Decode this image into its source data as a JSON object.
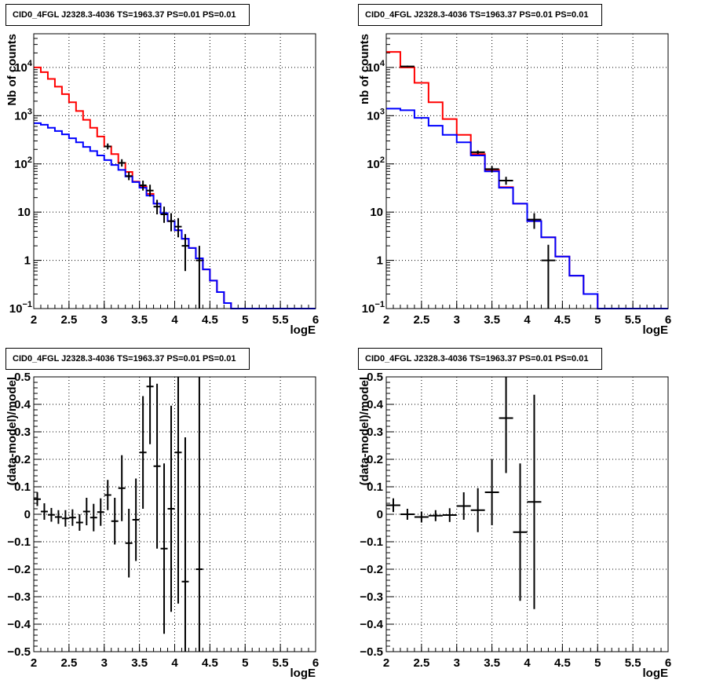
{
  "chart_data": [
    {
      "type": "line",
      "title": "CID0_4FGL J2328.3-4036 TS=1963.37 PS=0.01 PS=0.01",
      "xlabel": "logE",
      "ylabel": "Nb of counts",
      "xlim": [
        2,
        6
      ],
      "ylim": [
        0.1,
        50000
      ],
      "yscale": "log",
      "grid": true,
      "xticks": [
        "2",
        "2.5",
        "3",
        "3.5",
        "4",
        "4.5",
        "5",
        "5.5",
        "6"
      ],
      "yticks": [
        {
          "v": 0.1,
          "label": "10",
          "exp": "−1"
        },
        {
          "v": 1,
          "label": "1",
          "exp": ""
        },
        {
          "v": 10,
          "label": "10",
          "exp": ""
        },
        {
          "v": 100,
          "label": "10",
          "exp": "2"
        },
        {
          "v": 1000,
          "label": "10",
          "exp": "3"
        },
        {
          "v": 10000,
          "label": "10",
          "exp": "4"
        }
      ],
      "bin_edges": [
        2.0,
        2.1,
        2.2,
        2.3,
        2.4,
        2.5,
        2.6,
        2.7,
        2.8,
        2.9,
        3.0,
        3.1,
        3.2,
        3.3,
        3.4,
        3.5,
        3.6,
        3.7,
        3.8,
        3.9,
        4.0,
        4.1,
        4.2,
        4.3,
        4.4,
        4.5,
        4.6,
        4.7,
        4.8,
        4.9,
        5.0,
        5.1,
        5.2,
        5.3,
        5.4,
        5.5,
        5.6,
        5.7,
        5.8,
        5.9,
        6.0
      ],
      "series": [
        {
          "color": "#ff0000",
          "values": [
            10000,
            8000,
            5800,
            4000,
            2800,
            1900,
            1250,
            820,
            560,
            370,
            230,
            160,
            105,
            68,
            43,
            34,
            24,
            15,
            9.5,
            6.5,
            4.2,
            2.8,
            1.8,
            1.1,
            0.65,
            0.38,
            0.22,
            0.13,
            0.1,
            0.1,
            0.1,
            0.1,
            0.1,
            0.1,
            0.1,
            0.1,
            0.1,
            0.1,
            0.1,
            0.1
          ]
        },
        {
          "color": "#0000ff",
          "values": [
            700,
            650,
            560,
            480,
            410,
            340,
            280,
            225,
            185,
            150,
            120,
            95,
            75,
            55,
            42,
            32,
            22,
            15,
            9.5,
            6.5,
            4.2,
            2.8,
            1.8,
            1.1,
            0.65,
            0.38,
            0.22,
            0.13,
            0.1,
            0.1,
            0.1,
            0.1,
            0.1,
            0.1,
            0.1,
            0.1,
            0.1,
            0.1,
            0.1,
            0.1
          ]
        }
      ],
      "data_points": [
        {
          "x": 3.05,
          "y": 230,
          "ylo": 200,
          "yhi": 265
        },
        {
          "x": 3.25,
          "y": 105,
          "ylo": 88,
          "yhi": 125
        },
        {
          "x": 3.35,
          "y": 56,
          "ylo": 46,
          "yhi": 68
        },
        {
          "x": 3.55,
          "y": 36,
          "ylo": 28,
          "yhi": 45
        },
        {
          "x": 3.65,
          "y": 28,
          "ylo": 21,
          "yhi": 37
        },
        {
          "x": 3.75,
          "y": 13,
          "ylo": 9,
          "yhi": 18
        },
        {
          "x": 3.85,
          "y": 9,
          "ylo": 6,
          "yhi": 13
        },
        {
          "x": 3.95,
          "y": 6.5,
          "ylo": 4,
          "yhi": 9.5
        },
        {
          "x": 4.05,
          "y": 5,
          "ylo": 3,
          "yhi": 7.5
        },
        {
          "x": 4.15,
          "y": 2,
          "ylo": 0.6,
          "yhi": 3.5
        },
        {
          "x": 4.35,
          "y": 1,
          "ylo": 0.1,
          "yhi": 2
        }
      ]
    },
    {
      "type": "line",
      "title": "CID0_4FGL J2328.3-4036 TS=1963.37 PS=0.01 PS=0.01",
      "xlabel": "logE",
      "ylabel": "nb of counts",
      "xlim": [
        2,
        6
      ],
      "ylim": [
        0.1,
        50000
      ],
      "yscale": "log",
      "grid": true,
      "xticks": [
        "2",
        "2.5",
        "3",
        "3.5",
        "4",
        "4.5",
        "5",
        "5.5",
        "6"
      ],
      "yticks": [
        {
          "v": 0.1,
          "label": "10",
          "exp": "−1"
        },
        {
          "v": 1,
          "label": "1",
          "exp": ""
        },
        {
          "v": 10,
          "label": "10",
          "exp": ""
        },
        {
          "v": 100,
          "label": "10",
          "exp": "2"
        },
        {
          "v": 1000,
          "label": "10",
          "exp": "3"
        },
        {
          "v": 10000,
          "label": "10",
          "exp": "4"
        }
      ],
      "bin_edges": [
        2.0,
        2.2,
        2.4,
        2.6,
        2.8,
        3.0,
        3.2,
        3.4,
        3.6,
        3.8,
        4.0,
        4.2,
        4.4,
        4.6,
        4.8,
        5.0,
        5.2,
        5.4,
        5.6,
        5.8,
        6.0
      ],
      "series": [
        {
          "color": "#ff0000",
          "values": [
            21000,
            10000,
            4800,
            1900,
            850,
            400,
            160,
            75,
            33,
            15,
            6.5,
            3,
            1.2,
            0.48,
            0.2,
            0.1,
            0.1,
            0.1,
            0.1,
            0.1
          ]
        },
        {
          "color": "#0000ff",
          "values": [
            1400,
            1300,
            900,
            620,
            400,
            280,
            150,
            70,
            32,
            15,
            6.5,
            3,
            1.2,
            0.48,
            0.2,
            0.1,
            0.1,
            0.1,
            0.1,
            0.1
          ]
        }
      ],
      "data_points": [
        {
          "x": 2.3,
          "y": 10500,
          "ylo": 10100,
          "yhi": 10900
        },
        {
          "x": 3.3,
          "y": 175,
          "ylo": 160,
          "yhi": 190
        },
        {
          "x": 3.5,
          "y": 78,
          "ylo": 67,
          "yhi": 90
        },
        {
          "x": 3.7,
          "y": 45,
          "ylo": 37,
          "yhi": 54
        },
        {
          "x": 4.1,
          "y": 7,
          "ylo": 4.5,
          "yhi": 9.5
        },
        {
          "x": 4.3,
          "y": 1,
          "ylo": 0.1,
          "yhi": 2.1
        }
      ]
    },
    {
      "type": "scatter",
      "title": "CID0_4FGL J2328.3-4036 TS=1963.37 PS=0.01 PS=0.01",
      "xlabel": "logE",
      "ylabel": "(data-model)/model",
      "xlim": [
        2,
        6
      ],
      "ylim": [
        -0.5,
        0.5
      ],
      "grid": true,
      "xticks": [
        "2",
        "2.5",
        "3",
        "3.5",
        "4",
        "4.5",
        "5",
        "5.5",
        "6"
      ],
      "yticks": [
        "−0.5",
        "−0.4",
        "−0.3",
        "−0.2",
        "−0.1",
        "0",
        "0.1",
        "0.2",
        "0.3",
        "0.4",
        "0.5"
      ],
      "ytick_values": [
        -0.5,
        -0.4,
        -0.3,
        -0.2,
        -0.1,
        0,
        0.1,
        0.2,
        0.3,
        0.4,
        0.5
      ],
      "bin_halfwidth": 0.05,
      "data_points": [
        {
          "x": 2.05,
          "y": 0.055,
          "err": 0.025
        },
        {
          "x": 2.15,
          "y": 0.01,
          "err": 0.03
        },
        {
          "x": 2.25,
          "y": -0.002,
          "err": 0.025
        },
        {
          "x": 2.35,
          "y": -0.01,
          "err": 0.025
        },
        {
          "x": 2.45,
          "y": -0.015,
          "err": 0.03
        },
        {
          "x": 2.55,
          "y": -0.012,
          "err": 0.03
        },
        {
          "x": 2.65,
          "y": -0.03,
          "err": 0.03
        },
        {
          "x": 2.75,
          "y": 0.01,
          "err": 0.05
        },
        {
          "x": 2.85,
          "y": -0.012,
          "err": 0.05
        },
        {
          "x": 2.95,
          "y": 0.008,
          "err": 0.05
        },
        {
          "x": 3.05,
          "y": 0.07,
          "err": 0.055
        },
        {
          "x": 3.15,
          "y": -0.025,
          "err": 0.085
        },
        {
          "x": 3.25,
          "y": 0.095,
          "err": 0.12
        },
        {
          "x": 3.35,
          "y": -0.105,
          "err": 0.125
        },
        {
          "x": 3.45,
          "y": -0.02,
          "err": 0.15
        },
        {
          "x": 3.55,
          "y": 0.225,
          "err": 0.205
        },
        {
          "x": 3.65,
          "y": 0.465,
          "err": 0.21
        },
        {
          "x": 3.75,
          "y": 0.175,
          "err": 0.3
        },
        {
          "x": 3.85,
          "y": -0.125,
          "err": 0.31
        },
        {
          "x": 3.95,
          "y": 0.02,
          "err": 0.375
        },
        {
          "x": 4.05,
          "y": 0.225,
          "err": 0.55
        },
        {
          "x": 4.15,
          "y": -0.245,
          "err": 0.525
        },
        {
          "x": 4.35,
          "y": -0.2,
          "err": 0.8
        }
      ]
    },
    {
      "type": "scatter",
      "title": "CID0_4FGL J2328.3-4036 TS=1963.37 PS=0.01 PS=0.01",
      "xlabel": "logE",
      "ylabel": "(data-model)/model",
      "xlim": [
        2,
        6
      ],
      "ylim": [
        -0.5,
        0.5
      ],
      "grid": true,
      "xticks": [
        "2",
        "2.5",
        "3",
        "3.5",
        "4",
        "4.5",
        "5",
        "5.5",
        "6"
      ],
      "yticks": [
        "−0.5",
        "−0.4",
        "−0.3",
        "−0.2",
        "−0.1",
        "0",
        "0.1",
        "0.2",
        "0.3",
        "0.4",
        "0.5"
      ],
      "ytick_values": [
        -0.5,
        -0.4,
        -0.3,
        -0.2,
        -0.1,
        0,
        0.1,
        0.2,
        0.3,
        0.4,
        0.5
      ],
      "bin_halfwidth": 0.1,
      "data_points": [
        {
          "x": 2.1,
          "y": 0.033,
          "err": 0.025
        },
        {
          "x": 2.3,
          "y": 0.0,
          "err": 0.02
        },
        {
          "x": 2.5,
          "y": -0.01,
          "err": 0.02
        },
        {
          "x": 2.7,
          "y": -0.005,
          "err": 0.02
        },
        {
          "x": 2.9,
          "y": -0.003,
          "err": 0.025
        },
        {
          "x": 3.1,
          "y": 0.03,
          "err": 0.05
        },
        {
          "x": 3.3,
          "y": 0.015,
          "err": 0.08
        },
        {
          "x": 3.5,
          "y": 0.08,
          "err": 0.12
        },
        {
          "x": 3.7,
          "y": 0.35,
          "err": 0.2
        },
        {
          "x": 3.9,
          "y": -0.065,
          "err": 0.25
        },
        {
          "x": 4.1,
          "y": 0.045,
          "err": 0.39
        }
      ]
    }
  ]
}
